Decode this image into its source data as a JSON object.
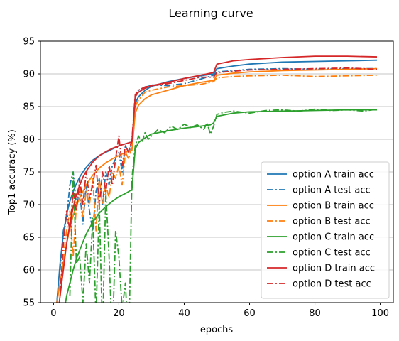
{
  "chart_data": {
    "type": "line",
    "title": "Learning curve",
    "xlabel": "epochs",
    "ylabel": "Top1 accuracy (%)",
    "xlim": [
      -4,
      104
    ],
    "ylim": [
      55,
      95
    ],
    "xticks": [
      0,
      20,
      40,
      60,
      80,
      100
    ],
    "yticks": [
      55,
      60,
      65,
      70,
      75,
      80,
      85,
      90,
      95
    ],
    "grid": "horizontal",
    "legend_position": "lower right",
    "colors": {
      "A": "#1f77b4",
      "B": "#ff7f0e",
      "C": "#2ca02c",
      "D": "#d62728"
    },
    "series": [
      {
        "name": "option A train acc",
        "color": "#1f77b4",
        "style": "solid",
        "x": [
          0,
          1,
          2,
          3,
          4,
          5,
          6,
          7,
          8,
          9,
          10,
          12,
          14,
          16,
          18,
          20,
          22,
          24,
          25,
          26,
          28,
          30,
          35,
          40,
          45,
          49,
          50,
          55,
          60,
          70,
          80,
          90,
          99
        ],
        "y": [
          52,
          55,
          61,
          65.5,
          68.5,
          70.5,
          72,
          73.2,
          74.2,
          75,
          75.7,
          76.8,
          77.5,
          78,
          78.5,
          79,
          79.3,
          79.6,
          85.5,
          86.5,
          87.5,
          88.1,
          88.8,
          89.3,
          89.7,
          90,
          90.8,
          91.2,
          91.5,
          91.8,
          91.9,
          92,
          92.1
        ]
      },
      {
        "name": "option A test acc",
        "color": "#1f77b4",
        "style": "dashdot",
        "x": [
          2,
          3,
          4,
          5,
          6,
          7,
          8,
          9,
          10,
          11,
          12,
          13,
          14,
          15,
          16,
          17,
          18,
          19,
          20,
          21,
          22,
          23,
          24,
          25,
          26,
          28,
          30,
          35,
          40,
          45,
          49,
          50,
          55,
          60,
          70,
          80,
          90,
          99
        ],
        "y": [
          60,
          66,
          68,
          73,
          75,
          70,
          72,
          67,
          73,
          69,
          66,
          72,
          74,
          70,
          75,
          73,
          76,
          77,
          78,
          75,
          79,
          78,
          79.5,
          86.5,
          87.5,
          88,
          88.3,
          88.2,
          88.5,
          89.2,
          89.8,
          90.3,
          90.5,
          90.7,
          90.8,
          90.7,
          90.8,
          90.8
        ]
      },
      {
        "name": "option B train acc",
        "color": "#ff7f0e",
        "style": "solid",
        "x": [
          1,
          2,
          3,
          4,
          5,
          6,
          7,
          8,
          9,
          10,
          12,
          14,
          16,
          18,
          20,
          22,
          24,
          25,
          26,
          28,
          30,
          35,
          40,
          45,
          49,
          50,
          55,
          60,
          70,
          80,
          90,
          99
        ],
        "y": [
          55,
          58,
          61,
          64,
          66.5,
          68.3,
          69.8,
          71,
          72,
          73,
          74.5,
          75.6,
          76.4,
          77,
          77.5,
          78,
          78.3,
          84,
          85.2,
          86.2,
          86.8,
          87.5,
          88.2,
          88.7,
          89,
          89.8,
          90.1,
          90.3,
          90.5,
          90.6,
          90.7,
          90.8
        ]
      },
      {
        "name": "option B test acc",
        "color": "#ff7f0e",
        "style": "dashdot",
        "x": [
          2,
          3,
          4,
          5,
          6,
          7,
          8,
          9,
          10,
          11,
          12,
          13,
          14,
          15,
          16,
          17,
          18,
          19,
          20,
          21,
          22,
          23,
          24,
          25,
          26,
          28,
          30,
          35,
          40,
          45,
          49,
          50,
          55,
          60,
          70,
          80,
          90,
          99
        ],
        "y": [
          56,
          62,
          66,
          69,
          62,
          70,
          73,
          68,
          72,
          70,
          74,
          66,
          74,
          70,
          73,
          71,
          75,
          74,
          76,
          73,
          78,
          77,
          79,
          85,
          86,
          87.2,
          87.5,
          88,
          88.2,
          88.4,
          88.8,
          89.4,
          89.6,
          89.7,
          89.8,
          89.6,
          89.7,
          89.8
        ]
      },
      {
        "name": "option C train acc",
        "color": "#2ca02c",
        "style": "solid",
        "x": [
          3,
          4,
          5,
          6,
          7,
          8,
          9,
          10,
          12,
          14,
          16,
          18,
          20,
          22,
          23,
          24,
          25,
          26,
          28,
          30,
          35,
          40,
          45,
          48,
          49,
          50,
          55,
          60,
          70,
          80,
          90,
          99
        ],
        "y": [
          53,
          56,
          58,
          60,
          61.7,
          63,
          64.3,
          65.5,
          67.3,
          68.7,
          69.7,
          70.5,
          71.2,
          71.7,
          72,
          72.3,
          78.5,
          79.5,
          80.2,
          80.8,
          81.3,
          81.7,
          82,
          82.2,
          82.5,
          83.5,
          84,
          84.2,
          84.3,
          84.4,
          84.5,
          84.5
        ]
      },
      {
        "name": "option C test acc",
        "color": "#2ca02c",
        "style": "dashdot",
        "x": [
          5,
          6,
          7,
          8,
          9,
          10,
          11,
          12,
          13,
          14,
          15,
          16,
          17,
          18,
          19,
          20,
          21,
          22,
          23,
          24,
          25,
          26,
          27,
          28,
          29,
          30,
          32,
          34,
          36,
          38,
          40,
          42,
          44,
          46,
          47,
          48,
          49,
          50,
          52,
          55,
          60,
          65,
          70,
          75,
          80,
          85,
          90,
          95,
          99
        ],
        "y": [
          56,
          75,
          61,
          62,
          55,
          64,
          58,
          68,
          53,
          70,
          50,
          72,
          62,
          49,
          66,
          62,
          54,
          58,
          48,
          74,
          79,
          80.5,
          79.5,
          81,
          80,
          80.5,
          81.5,
          81,
          82,
          81.5,
          82.3,
          81.8,
          82.2,
          81.5,
          82.5,
          80.8,
          82,
          83.8,
          84.1,
          84.3,
          84,
          84.4,
          84.5,
          84.3,
          84.6,
          84.4,
          84.5,
          84.3,
          84.6
        ]
      },
      {
        "name": "option D train acc",
        "color": "#d62728",
        "style": "solid",
        "x": [
          1,
          2,
          3,
          4,
          5,
          6,
          7,
          8,
          9,
          10,
          12,
          14,
          16,
          18,
          20,
          22,
          24,
          25,
          26,
          28,
          30,
          35,
          40,
          45,
          49,
          50,
          55,
          60,
          70,
          80,
          90,
          99
        ],
        "y": [
          52,
          56,
          60,
          64,
          67,
          69.5,
          71.5,
          73,
          74.2,
          75.1,
          76.5,
          77.5,
          78.1,
          78.6,
          79,
          79.3,
          79.6,
          86.5,
          87.2,
          87.8,
          88.2,
          88.7,
          89.3,
          89.8,
          90.2,
          91.5,
          92,
          92.2,
          92.5,
          92.7,
          92.7,
          92.6
        ]
      },
      {
        "name": "option D test acc",
        "color": "#d62728",
        "style": "dashdot",
        "x": [
          2,
          3,
          4,
          5,
          6,
          7,
          8,
          9,
          10,
          11,
          12,
          13,
          14,
          15,
          16,
          17,
          18,
          19,
          20,
          21,
          22,
          23,
          24,
          25,
          26,
          28,
          30,
          35,
          40,
          45,
          49,
          50,
          55,
          60,
          70,
          80,
          90,
          99
        ],
        "y": [
          56,
          64,
          69,
          66,
          72,
          69,
          74,
          70,
          75,
          71,
          73,
          76,
          70,
          75,
          72,
          76,
          73,
          77,
          80.5,
          76,
          79,
          78,
          80,
          86.8,
          87.5,
          88,
          88.2,
          88.5,
          89,
          89.5,
          89.5,
          90.2,
          90.4,
          90.6,
          90.7,
          90.8,
          90.9,
          90.7
        ]
      }
    ]
  }
}
